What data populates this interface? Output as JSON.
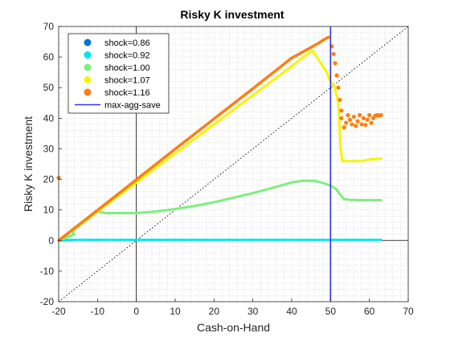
{
  "chart_data": {
    "type": "scatter",
    "title": "Risky K investment",
    "xlabel": "Cash-on-Hand",
    "ylabel": "Risky K investment",
    "xlim": [
      -20,
      70
    ],
    "ylim": [
      -20,
      70
    ],
    "xticks": [
      -20,
      -10,
      0,
      10,
      20,
      30,
      40,
      50,
      60,
      70
    ],
    "yticks": [
      -20,
      -10,
      0,
      10,
      20,
      30,
      40,
      50,
      60,
      70
    ],
    "grid": "minor dotted",
    "legend_position": "top-left",
    "reference_lines": {
      "diagonal_45deg": true,
      "zero_axes": true,
      "vertical_line": {
        "name": "max-agg-save",
        "x": 50,
        "color": "#3333dd"
      }
    },
    "series": [
      {
        "name": "shock=0.86",
        "color": "#0072e0",
        "kind": "line",
        "points": [
          [
            -20,
            0
          ],
          [
            -16,
            0.2
          ],
          [
            0,
            0.2
          ],
          [
            20,
            0.2
          ],
          [
            40,
            0.2
          ],
          [
            63,
            0.2
          ]
        ]
      },
      {
        "name": "shock=0.92",
        "color": "#00e5ee",
        "kind": "line",
        "points": [
          [
            -20,
            0
          ],
          [
            -16,
            0.2
          ],
          [
            0,
            0.2
          ],
          [
            20,
            0.2
          ],
          [
            40,
            0.2
          ],
          [
            63,
            0.2
          ]
        ]
      },
      {
        "name": "shock=1.00",
        "color": "#7cf07c",
        "kind": "line",
        "points": [
          [
            -20,
            0
          ],
          [
            -16,
            2
          ],
          [
            -16.5,
            3
          ],
          [
            -10,
            9.5
          ],
          [
            -8,
            9
          ],
          [
            -5,
            9
          ],
          [
            0,
            9
          ],
          [
            5,
            9.5
          ],
          [
            10,
            10.3
          ],
          [
            15,
            11.3
          ],
          [
            20,
            12.5
          ],
          [
            25,
            14
          ],
          [
            30,
            15.5
          ],
          [
            35,
            17.2
          ],
          [
            40,
            19
          ],
          [
            43,
            19.6
          ],
          [
            46,
            19.5
          ],
          [
            48,
            18.8
          ],
          [
            50,
            18
          ],
          [
            51.5,
            16.8
          ],
          [
            52.5,
            15
          ],
          [
            53.5,
            13.5
          ],
          [
            55,
            13.3
          ],
          [
            58,
            13.2
          ],
          [
            63,
            13.2
          ]
        ]
      },
      {
        "name": "shock=1.07",
        "color": "#f5f500",
        "kind": "line",
        "points": [
          [
            -20,
            0
          ],
          [
            -10,
            9.5
          ],
          [
            0,
            19
          ],
          [
            10,
            28.5
          ],
          [
            20,
            38
          ],
          [
            30,
            47.5
          ],
          [
            40,
            57
          ],
          [
            44,
            61
          ],
          [
            45.5,
            62
          ],
          [
            47,
            59
          ],
          [
            48,
            57
          ],
          [
            49,
            55
          ],
          [
            50,
            52
          ],
          [
            51,
            50.5
          ],
          [
            52,
            45
          ],
          [
            52.3,
            38
          ],
          [
            52.6,
            30
          ],
          [
            53,
            26
          ],
          [
            55,
            26
          ],
          [
            58,
            26
          ],
          [
            60,
            26.5
          ],
          [
            63,
            26.8
          ]
        ]
      },
      {
        "name": "shock=1.16",
        "color": "#ff7f0e",
        "kind": "line",
        "points": [
          [
            -20,
            0
          ],
          [
            -10,
            9.9
          ],
          [
            0,
            19.9
          ],
          [
            10,
            29.9
          ],
          [
            20,
            39.8
          ],
          [
            30,
            49.7
          ],
          [
            40,
            59.7
          ],
          [
            47,
            64.6
          ],
          [
            48,
            65.5
          ],
          [
            49,
            66.2
          ],
          [
            49.5,
            66.5
          ]
        ]
      },
      {
        "name": "shock=1.16 (scatter tail)",
        "color": "#ff7f0e",
        "kind": "scatter",
        "points": [
          [
            -20,
            20.5
          ],
          [
            50.3,
            63.5
          ],
          [
            50.8,
            61
          ],
          [
            51.2,
            58
          ],
          [
            51.6,
            54
          ],
          [
            52,
            50
          ],
          [
            52.4,
            46
          ],
          [
            52.8,
            42.5
          ],
          [
            52.8,
            40
          ],
          [
            53.5,
            37
          ],
          [
            54,
            38.5
          ],
          [
            54.5,
            41
          ],
          [
            55,
            39.5
          ],
          [
            55.5,
            38
          ],
          [
            56,
            40.5
          ],
          [
            56.5,
            37.5
          ],
          [
            57,
            39
          ],
          [
            57.5,
            41
          ],
          [
            58,
            38
          ],
          [
            58.5,
            40
          ],
          [
            59,
            37.8
          ],
          [
            59.5,
            39.5
          ],
          [
            60,
            41
          ],
          [
            60.5,
            38.5
          ],
          [
            61,
            40
          ],
          [
            61.5,
            40.8
          ],
          [
            62,
            41
          ],
          [
            62.5,
            40.9
          ],
          [
            63,
            41
          ]
        ]
      }
    ],
    "legend": [
      {
        "label": "shock=0.86",
        "color": "#0072e0",
        "marker": "dot"
      },
      {
        "label": "shock=0.92",
        "color": "#00e5ee",
        "marker": "dot"
      },
      {
        "label": "shock=1.00",
        "color": "#7cf07c",
        "marker": "dot"
      },
      {
        "label": "shock=1.07",
        "color": "#f5f500",
        "marker": "dot"
      },
      {
        "label": "shock=1.16",
        "color": "#ff7f0e",
        "marker": "dot"
      },
      {
        "label": "max-agg-save",
        "color": "#3333dd",
        "marker": "line"
      }
    ]
  }
}
